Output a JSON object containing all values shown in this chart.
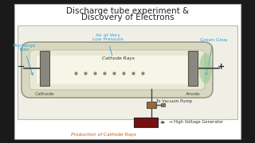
{
  "title_line1": "Discharge tube experiment &",
  "title_line2": "Discovery of Electrons",
  "bg_white": "#ffffff",
  "bg_outer": "#1a1a1a",
  "diagram_bg": "#f0efe6",
  "tube_outer_fill": "#d8d8c0",
  "tube_inner_fill": "#e8e8d4",
  "tube_very_inner": "#f5f5e8",
  "cathode_fill": "#888880",
  "anode_fill": "#888880",
  "wire_color": "#444444",
  "ray_color": "#cc7722",
  "dot_color": "#888866",
  "glow_color": "#90c890",
  "blue_label": "#3a9bcc",
  "dark_label": "#444444",
  "orange_label": "#cc5500",
  "green_label": "#449944",
  "battery_fill": "#771111",
  "pump_fill": "#996644",
  "title_color": "#222222",
  "title_fs": 7.5,
  "label_fs": 4.2,
  "small_fs": 3.8,
  "minus": "−",
  "plus": "+",
  "caption": "Production of Cathode Rays"
}
